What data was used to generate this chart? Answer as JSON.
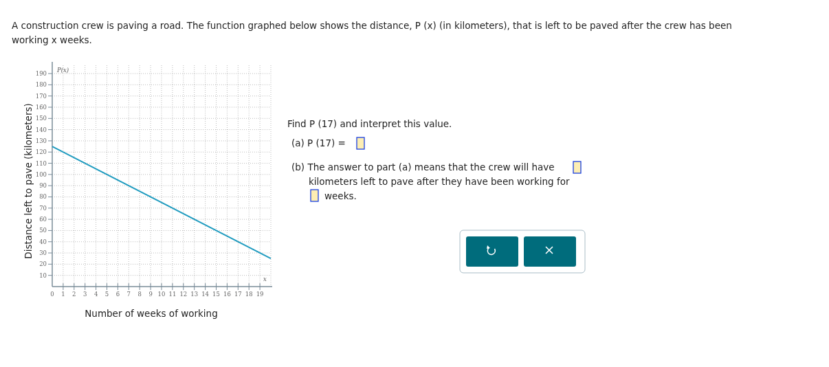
{
  "chart_data": {
    "type": "line",
    "title": "A construction crew is paving a road. The function graphed below shows the distance, P (x) (in kilometers), that is left to be paved after the crew has been working x weeks.",
    "xlabel": "Number of weeks of working",
    "ylabel": "Distance left to pave (kilometers)",
    "x": [
      0,
      20
    ],
    "series": [
      {
        "color": "#1f9bbf",
        "values": [
          125,
          25
        ]
      }
    ],
    "xlim": [
      0,
      20
    ],
    "ylim": [
      0,
      198
    ],
    "xticks": [
      0,
      1,
      2,
      3,
      4,
      5,
      6,
      7,
      8,
      9,
      10,
      11,
      12,
      13,
      14,
      15,
      16,
      17,
      18,
      19
    ],
    "yticks": [
      10,
      20,
      30,
      40,
      50,
      60,
      70,
      80,
      90,
      100,
      110,
      120,
      130,
      140,
      150,
      160,
      170,
      180,
      190
    ],
    "grid": true,
    "marker": "none",
    "line_style": "solid",
    "annotations": [
      "P(x)",
      "x",
      "Find P (17) and interpret this value.",
      "(a) P (17) =",
      "(b) The answer to part (a) means that the crew will have",
      "kilometers left to pave after they have been working for",
      "weeks."
    ]
  }
}
